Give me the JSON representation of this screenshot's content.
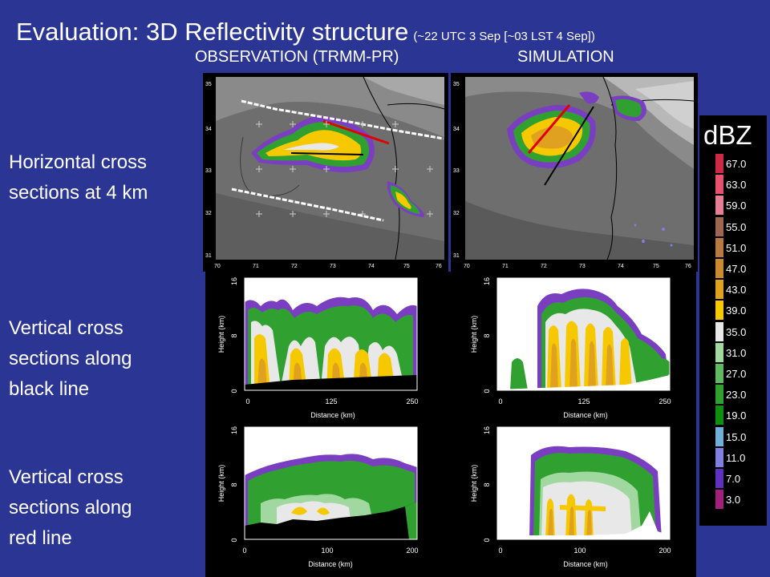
{
  "title": "Evaluation:  3D Reflectivity  structure",
  "subtitle": "(~22 UTC 3 Sep [~03 LST 4 Sep])",
  "headers": {
    "obs": "OBSERVATION (TRMM-PR)",
    "sim": "SIMULATION"
  },
  "row_labels": {
    "horizontal": [
      "Horizontal cross",
      "sections at 4 km"
    ],
    "vertical_black": [
      "Vertical cross",
      "sections along",
      "black line"
    ],
    "vertical_red": [
      "Vertical cross",
      "sections along",
      "red line"
    ]
  },
  "legend": {
    "unit": "dBZ",
    "levels": [
      "67.0",
      "63.0",
      "59.0",
      "55.0",
      "51.0",
      "47.0",
      "43.0",
      "39.0",
      "35.0",
      "31.0",
      "27.0",
      "23.0",
      "19.0",
      "15.0",
      "11.0",
      "7.0",
      "3.0"
    ],
    "colors": [
      "#cc2a44",
      "#e8506e",
      "#e87e94",
      "#9c6650",
      "#b87842",
      "#cc8a30",
      "#e0a020",
      "#f5c800",
      "#e8e8e8",
      "#a0d8a0",
      "#60b860",
      "#30a030",
      "#109010",
      "#70b0d8",
      "#8080e0",
      "#6030c0",
      "#a0207c"
    ]
  },
  "map": {
    "lat_ticks": [
      "35",
      "34",
      "33",
      "32",
      "31"
    ],
    "lon_ticks": [
      "70",
      "71",
      "72",
      "73",
      "74",
      "75",
      "76"
    ]
  },
  "vertical": {
    "ylabel": "Height (km)",
    "xlabel": "Distance (km)",
    "y_ticks": [
      "0",
      "8",
      "16"
    ],
    "black_x_ticks": [
      "0",
      "125",
      "250"
    ],
    "red_x_ticks": [
      "0",
      "100",
      "200"
    ]
  },
  "chart_data": [
    {
      "type": "heatmap",
      "panel": "Horizontal cross sections at 4 km",
      "column": "OBSERVATION (TRMM-PR)",
      "xlim": [
        70,
        76
      ],
      "ylim": [
        31,
        35
      ]
    },
    {
      "type": "heatmap",
      "panel": "Horizontal cross sections at 4 km",
      "column": "SIMULATION",
      "xlim": [
        70,
        76
      ],
      "ylim": [
        31,
        35
      ]
    },
    {
      "type": "heatmap",
      "panel": "Vertical cross sections along black line",
      "column": "OBSERVATION (TRMM-PR)",
      "xlabel": "Distance (km)",
      "ylabel": "Height (km)",
      "xlim": [
        0,
        250
      ],
      "ylim": [
        0,
        16
      ]
    },
    {
      "type": "heatmap",
      "panel": "Vertical cross sections along black line",
      "column": "SIMULATION",
      "xlabel": "Distance (km)",
      "ylabel": "Height (km)",
      "xlim": [
        0,
        250
      ],
      "ylim": [
        0,
        16
      ]
    },
    {
      "type": "heatmap",
      "panel": "Vertical cross sections along red line",
      "column": "OBSERVATION (TRMM-PR)",
      "xlabel": "Distance (km)",
      "ylabel": "Height (km)",
      "xlim": [
        0,
        200
      ],
      "ylim": [
        0,
        16
      ]
    },
    {
      "type": "heatmap",
      "panel": "Vertical cross sections along red line",
      "column": "SIMULATION",
      "xlabel": "Distance (km)",
      "ylabel": "Height (km)",
      "xlim": [
        0,
        200
      ],
      "ylim": [
        0,
        16
      ]
    }
  ]
}
